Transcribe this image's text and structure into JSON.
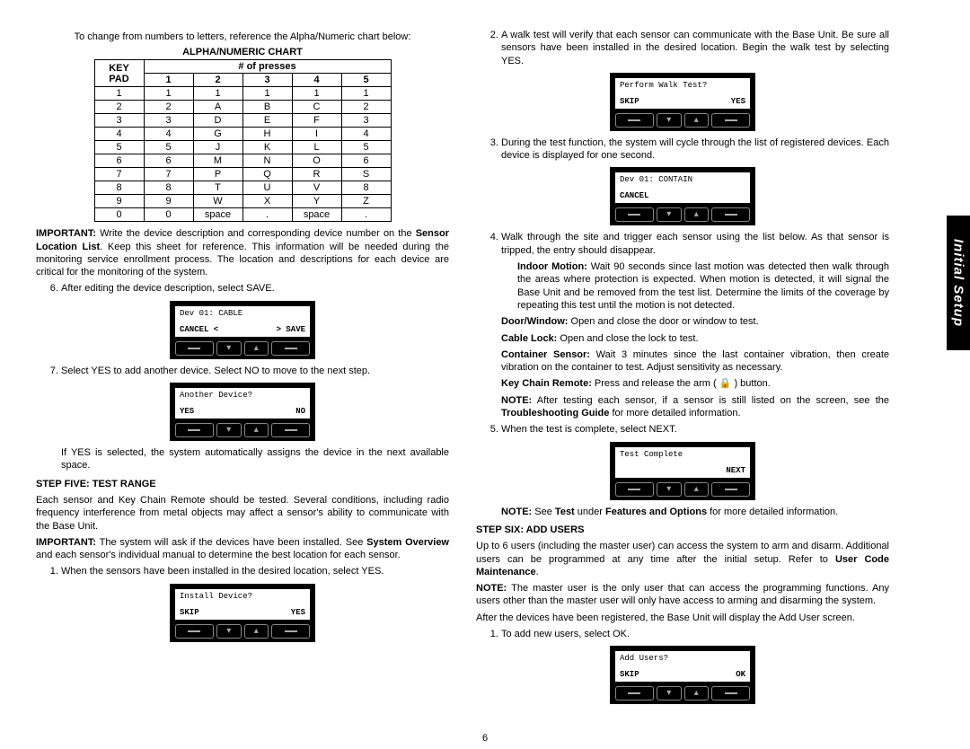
{
  "sideTab": "Initial Setup",
  "pageNumber": "6",
  "leftCol": {
    "intro": "To change from numbers to letters, reference the Alpha/Numeric chart below:",
    "chartTitle": "ALPHA/NUMERIC CHART",
    "table": {
      "h1": "KEY PAD",
      "h2": "# of presses",
      "pressCols": [
        "1",
        "2",
        "3",
        "4",
        "5"
      ],
      "rows": [
        [
          "1",
          "1",
          "1",
          "1",
          "1",
          "1"
        ],
        [
          "2",
          "2",
          "A",
          "B",
          "C",
          "2"
        ],
        [
          "3",
          "3",
          "D",
          "E",
          "F",
          "3"
        ],
        [
          "4",
          "4",
          "G",
          "H",
          "I",
          "4"
        ],
        [
          "5",
          "5",
          "J",
          "K",
          "L",
          "5"
        ],
        [
          "6",
          "6",
          "M",
          "N",
          "O",
          "6"
        ],
        [
          "7",
          "7",
          "P",
          "Q",
          "R",
          "S"
        ],
        [
          "8",
          "8",
          "T",
          "U",
          "V",
          "8"
        ],
        [
          "9",
          "9",
          "W",
          "X",
          "Y",
          "Z"
        ],
        [
          "0",
          "0",
          "space",
          ".",
          "space",
          "."
        ]
      ]
    },
    "importantLabel": "IMPORTANT:",
    "importantText": " Write the device description and corresponding device number on the ",
    "sensorLocList": "Sensor Location List",
    "importantText2": ". Keep this sheet for reference. This information will be needed during the monitoring service enrollment process. The location and descriptions for each device are critical for the monitoring of the system.",
    "step6": "After editing the device description, select SAVE.",
    "dev1": {
      "l1": "Dev 01: CABLE",
      "l2a": "CANCEL <",
      "l2b": "> SAVE"
    },
    "step7": "Select YES to add another device. Select NO to move to the next step.",
    "dev2": {
      "l1": "Another Device?",
      "l2a": "YES",
      "l2b": "NO"
    },
    "ifYes": "If YES is selected, the system automatically assigns the device in the next available space.",
    "step5h": "STEP FIVE: TEST RANGE",
    "step5p1": "Each sensor and Key Chain Remote should be tested. Several conditions, including radio frequency interference from metal objects may affect a sensor's ability to communicate with the Base Unit.",
    "step5imp": " The system will ask if the devices have been installed. See ",
    "sysOv": "System Overview",
    "step5imp2": " and each sensor's individual manual to determine the best location for each sensor.",
    "s5_1": "When the sensors have been installed in the desired location, select YES.",
    "dev3": {
      "l1": "Install Device?",
      "l2a": "SKIP",
      "l2b": "YES"
    }
  },
  "rightCol": {
    "s5_2": "A walk test will verify that each sensor can communicate with the Base Unit. Be sure all sensors have been installed in the desired location. Begin the walk test by selecting YES.",
    "dev4": {
      "l1": "Perform Walk Test?",
      "l2a": "SKIP",
      "l2b": "YES"
    },
    "s5_3": "During the test function, the system will cycle through the list of registered devices. Each device is displayed for one second.",
    "dev5": {
      "l1": "Dev 01: CONTAIN",
      "l2a": "CANCEL",
      "l2b": ""
    },
    "s5_4": "Walk through the site and trigger each sensor using the list below. As that sensor is tripped, the entry should disappear.",
    "indoor_b": "Indoor Motion:",
    "indoor_t": " Wait 90 seconds since last motion was detected then walk through the areas where protection is expected. When motion is detected, it will signal the Base Unit and be removed from the test list. Determine the limits of the coverage by repeating this test until the motion is not detected.",
    "door_b": "Door/Window:",
    "door_t": " Open and close the door or window to test.",
    "cable_b": "Cable Lock:",
    "cable_t": " Open and close the lock to test.",
    "cont_b": "Container Sensor:",
    "cont_t": " Wait 3 minutes since the last container vibration, then create vibration on the container to test. Adjust sensitivity as necessary.",
    "key_b": "Key Chain Remote:",
    "key_t": " Press and release the arm ( 🔒 ) button.",
    "noteLabel": "NOTE:",
    "noteText": " After testing each sensor, if a sensor is still listed on the screen, see the ",
    "trouble": "Troubleshooting Guide",
    "noteText2": " for more detailed information.",
    "s5_5": "When the test is complete, select NEXT.",
    "dev6": {
      "l1": "Test Complete",
      "l2a": "",
      "l2b": "NEXT"
    },
    "note2a": " See ",
    "note2b": "Test",
    "note2c": " under ",
    "note2d": "Features and Options",
    "note2e": " for more detailed information.",
    "step6h": "STEP SIX: ADD USERS",
    "step6p1a": "Up to 6 users (including the master user) can access the system to arm and disarm. Additional users can be programmed at any time after the initial setup. Refer to ",
    "userCode": "User Code Maintenance",
    "step6p1b": ".",
    "step6note": " The master user is the only user that can access the programming functions. Any users other than the master user will only have access to arming and disarming the system.",
    "step6p2": "After the devices have been registered, the Base Unit will display the Add User screen.",
    "s6_1": "To add new users, select OK.",
    "dev7": {
      "l1": "Add Users?",
      "l2a": "SKIP",
      "l2b": "OK"
    }
  }
}
